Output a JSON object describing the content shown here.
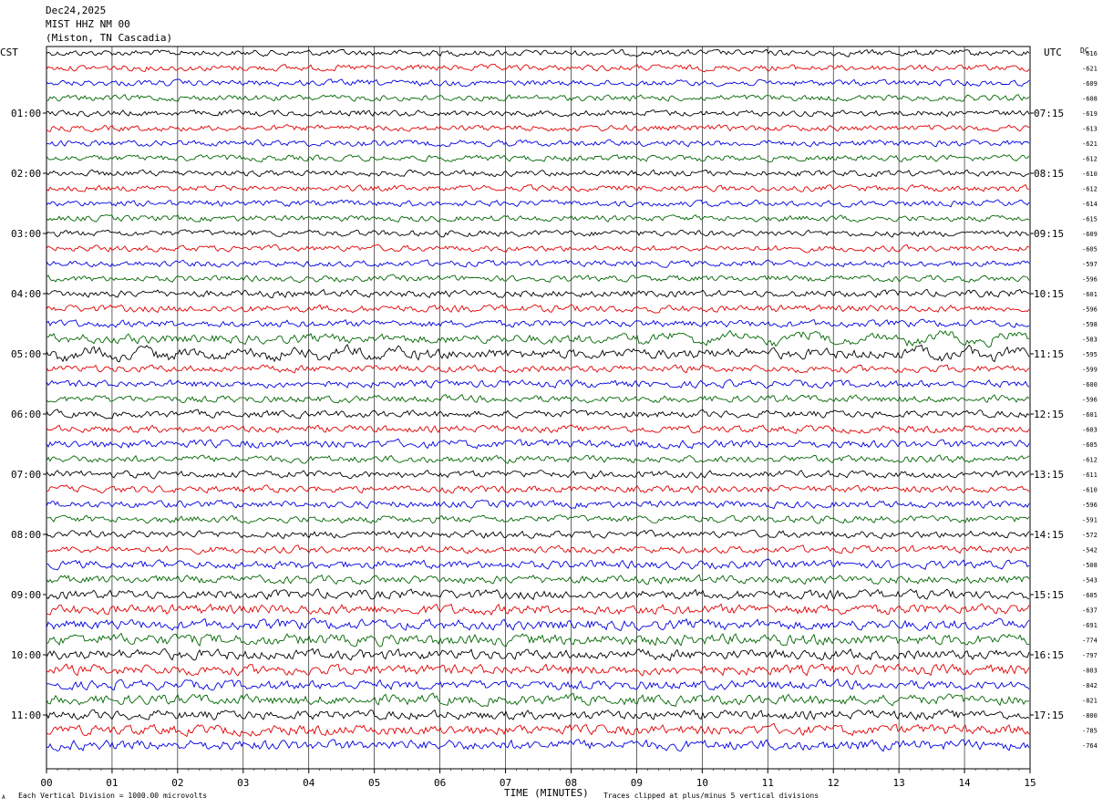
{
  "header": {
    "date": "Dec24,2025",
    "station": "MIST HHZ NM 00",
    "location": "(Miston, TN Cascadia)"
  },
  "footer": {
    "scale_note": "Each Vertical Division = 1000.00 microvolts",
    "clip_note": "Traces clipped at plus/minus 5 vertical divisions",
    "corner_mark": "A"
  },
  "chart_data": {
    "type": "line",
    "title": "",
    "xlabel": "TIME (MINUTES)",
    "ylabel": "",
    "x_ticks": [
      "00",
      "01",
      "02",
      "03",
      "04",
      "05",
      "06",
      "07",
      "08",
      "09",
      "10",
      "11",
      "12",
      "13",
      "14",
      "15"
    ],
    "xlim": [
      0,
      15
    ],
    "grid": true,
    "left_axis_label": "CST",
    "right_axis_label": "UTC",
    "dc_label": "DC",
    "left_time_labels": [
      "01:00",
      "02:00",
      "03:00",
      "04:00",
      "05:00",
      "06:00",
      "07:00",
      "08:00",
      "09:00",
      "10:00",
      "11:00"
    ],
    "right_time_labels": [
      "07:15",
      "08:15",
      "09:15",
      "10:15",
      "11:15",
      "12:15",
      "13:15",
      "14:15",
      "15:15",
      "16:15",
      "17:15"
    ],
    "trace_colors": [
      "#000000",
      "#e00000",
      "#0000e0",
      "#006600"
    ],
    "dc_offsets": [
      -616,
      -621,
      -609,
      -608,
      -619,
      -613,
      -621,
      -612,
      -610,
      -612,
      -614,
      -615,
      -609,
      -605,
      -597,
      -596,
      -601,
      -596,
      -598,
      -583,
      -595,
      -599,
      -600,
      -596,
      -601,
      -603,
      -605,
      -612,
      -611,
      -610,
      -596,
      -591,
      -572,
      -542,
      -508,
      -543,
      -605,
      -637,
      -691,
      -774,
      -797,
      -803,
      -842,
      -821,
      -800,
      -785,
      -764
    ],
    "trace_amplitudes": [
      0.3,
      0.3,
      0.3,
      0.3,
      0.3,
      0.3,
      0.3,
      0.3,
      0.3,
      0.3,
      0.3,
      0.3,
      0.3,
      0.3,
      0.3,
      0.3,
      0.35,
      0.35,
      0.35,
      0.45,
      0.5,
      0.35,
      0.35,
      0.35,
      0.35,
      0.35,
      0.4,
      0.35,
      0.35,
      0.35,
      0.35,
      0.35,
      0.35,
      0.35,
      0.4,
      0.4,
      0.45,
      0.5,
      0.5,
      0.55,
      0.5,
      0.5,
      0.45,
      0.5,
      0.45,
      0.5,
      0.5
    ]
  }
}
